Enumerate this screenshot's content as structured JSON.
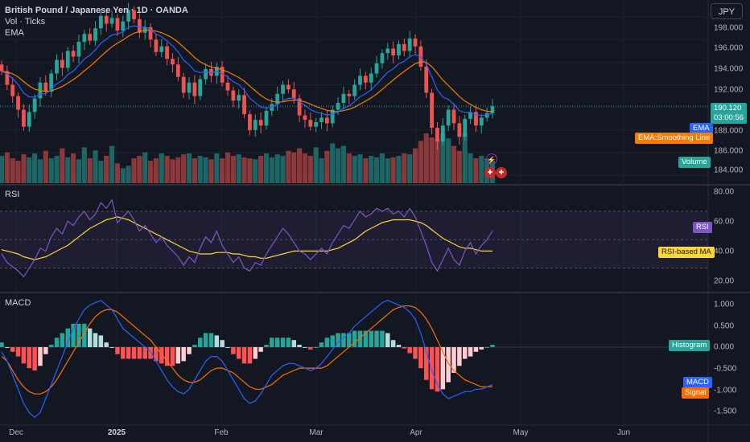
{
  "header": {
    "title": "British Pound / Japanese Yen · 1D · OANDA",
    "vol_label": "Vol · Ticks",
    "ema_label": "EMA",
    "currency_button": "JPY"
  },
  "price_panel": {
    "last_price": "190.120",
    "countdown": "03:00:56",
    "y_ticks": [
      "198.000",
      "196.000",
      "194.000",
      "192.000",
      "190.000",
      "188.000",
      "186.000",
      "184.000"
    ],
    "tags": {
      "ema": "EMA",
      "smoothing": "EMA:Smoothing Line",
      "volume": "Volume"
    }
  },
  "rsi_panel": {
    "label": "RSI",
    "y_ticks": [
      "80.00",
      "60.00",
      "40.00",
      "20.00"
    ],
    "tags": {
      "rsi": "RSI",
      "rsi_ma": "RSI-based MA"
    }
  },
  "macd_panel": {
    "label": "MACD",
    "y_ticks": [
      "1.000",
      "0.500",
      "0.000",
      "-0.500",
      "-1.000",
      "-1.500"
    ],
    "tags": {
      "histogram": "Histogram",
      "macd": "MACD",
      "signal": "Signal"
    }
  },
  "x_axis": {
    "labels": [
      "Dec",
      "2025",
      "Feb",
      "Mar",
      "Apr",
      "May",
      "Jun"
    ]
  },
  "colors": {
    "background": "#131722",
    "up": "#26a69a",
    "down": "#ef5350",
    "ema": "#2962ff",
    "smoothing": "#f57c00",
    "rsi": "#7e57c2",
    "rsi_ma": "#fdd835",
    "macd": "#2962ff",
    "signal": "#ff6d00",
    "hist_up_strong": "#26a69a",
    "hist_up_weak": "#b2dfdb",
    "hist_down_strong": "#ff5252",
    "hist_down_weak": "#ffcdd2"
  },
  "chart_data": [
    {
      "type": "candlestick",
      "title": "British Pound / Japanese Yen · 1D · OANDA",
      "ylim": [
        183.3,
        199.5
      ],
      "close_path": [
        193.2,
        192.0,
        191.0,
        189.8,
        188.3,
        189.6,
        190.8,
        192.2,
        191.4,
        193.0,
        194.2,
        193.5,
        195.0,
        194.5,
        195.8,
        196.5,
        195.9,
        197.0,
        198.1,
        197.4,
        197.9,
        196.8,
        197.6,
        198.6,
        197.8,
        196.6,
        197.1,
        196.0,
        194.9,
        195.4,
        194.3,
        193.8,
        192.7,
        191.3,
        192.2,
        191.0,
        192.5,
        193.4,
        192.8,
        193.6,
        192.2,
        191.5,
        190.6,
        191.1,
        189.4,
        188.0,
        188.9,
        188.4,
        189.7,
        190.3,
        191.2,
        192.0,
        191.6,
        190.8,
        189.3,
        188.9,
        188.3,
        188.7,
        189.1,
        188.6,
        189.8,
        190.4,
        191.2,
        191.0,
        192.0,
        192.8,
        192.2,
        193.0,
        193.9,
        194.8,
        195.2,
        194.6,
        195.6,
        195.0,
        196.1,
        195.4,
        193.6,
        191.3,
        188.2,
        187.0,
        188.4,
        189.8,
        188.6,
        187.4,
        189.0,
        189.6,
        188.4,
        189.1,
        189.5,
        190.1
      ],
      "volume_path": [
        0.55,
        0.62,
        0.5,
        0.45,
        0.58,
        0.52,
        0.6,
        0.48,
        0.65,
        0.5,
        0.55,
        0.7,
        0.52,
        0.6,
        0.48,
        0.72,
        0.5,
        0.66,
        0.45,
        0.55,
        0.75,
        0.4,
        0.3,
        0.35,
        0.5,
        0.55,
        0.62,
        0.45,
        0.5,
        0.6,
        0.55,
        0.48,
        0.52,
        0.58,
        0.6,
        0.5,
        0.55,
        0.52,
        0.48,
        0.6,
        0.5,
        0.62,
        0.55,
        0.58,
        0.52,
        0.5,
        0.48,
        0.55,
        0.6,
        0.52,
        0.58,
        0.55,
        0.65,
        0.62,
        0.7,
        0.6,
        0.55,
        0.72,
        0.5,
        0.65,
        0.8,
        0.7,
        0.75,
        0.6,
        0.55,
        0.58,
        0.5,
        0.55,
        0.52,
        0.6,
        0.5,
        0.52,
        0.55,
        0.6,
        0.58,
        0.7,
        0.85,
        1.0,
        0.92,
        0.88,
        1.0,
        0.9,
        0.75,
        0.65,
        1.0,
        0.6,
        0.5,
        0.55,
        0.5,
        0.45
      ],
      "last": 190.12
    },
    {
      "type": "line",
      "title": "RSI",
      "ylim": [
        14,
        88
      ],
      "series": [
        {
          "name": "RSI",
          "values": [
            40,
            34,
            31,
            28,
            24,
            30,
            36,
            44,
            42,
            52,
            58,
            54,
            63,
            60,
            66,
            70,
            64,
            68,
            76,
            72,
            78,
            62,
            66,
            70,
            64,
            56,
            60,
            54,
            48,
            52,
            46,
            42,
            38,
            32,
            38,
            34,
            44,
            52,
            48,
            56,
            46,
            40,
            34,
            38,
            30,
            28,
            34,
            32,
            40,
            46,
            52,
            58,
            54,
            48,
            42,
            40,
            36,
            40,
            44,
            40,
            48,
            54,
            60,
            58,
            64,
            70,
            66,
            68,
            72,
            70,
            72,
            68,
            70,
            66,
            72,
            66,
            56,
            46,
            34,
            28,
            36,
            44,
            36,
            32,
            42,
            48,
            40,
            46,
            50,
            56
          ]
        },
        {
          "name": "RSI-based MA",
          "values": [
            43,
            42,
            41,
            40,
            38,
            37,
            36,
            37,
            38,
            40,
            42,
            44,
            46,
            49,
            52,
            55,
            58,
            60,
            62,
            64,
            65,
            66,
            65,
            64,
            62,
            60,
            58,
            56,
            54,
            52,
            50,
            48,
            46,
            44,
            42,
            41,
            40,
            40,
            40,
            41,
            41,
            41,
            40,
            40,
            39,
            38,
            38,
            37,
            37,
            38,
            39,
            40,
            41,
            42,
            42,
            42,
            42,
            42,
            42,
            42,
            43,
            44,
            46,
            48,
            50,
            53,
            56,
            58,
            60,
            62,
            63,
            64,
            64,
            64,
            64,
            63,
            62,
            60,
            57,
            54,
            51,
            49,
            47,
            45,
            44,
            44,
            43,
            42,
            42,
            42
          ]
        }
      ]
    },
    {
      "type": "line",
      "title": "MACD",
      "ylim": [
        -1.65,
        1.15
      ],
      "series": [
        {
          "name": "MACD",
          "values": [
            -0.1,
            -0.3,
            -0.6,
            -0.9,
            -1.2,
            -1.4,
            -1.5,
            -1.4,
            -1.1,
            -0.8,
            -0.5,
            -0.2,
            0.1,
            0.4,
            0.6,
            0.8,
            0.9,
            0.95,
            1.0,
            0.9,
            0.8,
            0.6,
            0.4,
            0.3,
            0.2,
            0.1,
            0.0,
            -0.1,
            -0.3,
            -0.5,
            -0.7,
            -0.85,
            -0.95,
            -1.0,
            -0.9,
            -0.7,
            -0.5,
            -0.3,
            -0.2,
            -0.2,
            -0.3,
            -0.5,
            -0.7,
            -0.9,
            -1.1,
            -1.2,
            -1.15,
            -1.0,
            -0.8,
            -0.6,
            -0.5,
            -0.4,
            -0.35,
            -0.35,
            -0.4,
            -0.45,
            -0.5,
            -0.45,
            -0.35,
            -0.2,
            -0.05,
            0.1,
            0.2,
            0.3,
            0.45,
            0.55,
            0.65,
            0.75,
            0.85,
            0.95,
            1.0,
            0.95,
            0.9,
            0.85,
            0.75,
            0.6,
            0.3,
            -0.1,
            -0.5,
            -0.8,
            -1.0,
            -1.1,
            -1.05,
            -1.0,
            -0.95,
            -0.95,
            -0.9,
            -0.9,
            -0.85,
            -0.8
          ]
        },
        {
          "name": "Signal",
          "values": [
            -0.2,
            -0.3,
            -0.5,
            -0.7,
            -0.85,
            -0.95,
            -1.0,
            -1.0,
            -0.95,
            -0.85,
            -0.7,
            -0.5,
            -0.3,
            -0.1,
            0.1,
            0.3,
            0.5,
            0.65,
            0.75,
            0.8,
            0.8,
            0.75,
            0.65,
            0.55,
            0.45,
            0.35,
            0.25,
            0.15,
            0.0,
            -0.15,
            -0.3,
            -0.45,
            -0.6,
            -0.7,
            -0.75,
            -0.75,
            -0.7,
            -0.6,
            -0.5,
            -0.45,
            -0.45,
            -0.5,
            -0.55,
            -0.65,
            -0.75,
            -0.85,
            -0.9,
            -0.9,
            -0.85,
            -0.8,
            -0.7,
            -0.6,
            -0.55,
            -0.5,
            -0.45,
            -0.45,
            -0.45,
            -0.45,
            -0.45,
            -0.4,
            -0.3,
            -0.2,
            -0.1,
            0.0,
            0.1,
            0.2,
            0.3,
            0.4,
            0.5,
            0.6,
            0.7,
            0.8,
            0.85,
            0.88,
            0.88,
            0.85,
            0.75,
            0.6,
            0.4,
            0.15,
            -0.1,
            -0.35,
            -0.5,
            -0.6,
            -0.7,
            -0.75,
            -0.8,
            -0.85,
            -0.85,
            -0.85
          ]
        }
      ],
      "histogram": {
        "name": "Histogram",
        "values": [
          0.1,
          0.0,
          -0.1,
          -0.2,
          -0.35,
          -0.45,
          -0.5,
          -0.4,
          -0.15,
          0.05,
          0.2,
          0.3,
          0.4,
          0.5,
          0.5,
          0.5,
          0.4,
          0.3,
          0.25,
          0.1,
          0.0,
          -0.15,
          -0.25,
          -0.25,
          -0.25,
          -0.25,
          -0.25,
          -0.25,
          -0.3,
          -0.35,
          -0.4,
          -0.4,
          -0.35,
          -0.3,
          -0.15,
          0.05,
          0.2,
          0.3,
          0.3,
          0.25,
          0.15,
          0.0,
          -0.15,
          -0.25,
          -0.35,
          -0.35,
          -0.25,
          -0.1,
          0.05,
          0.2,
          0.2,
          0.2,
          0.2,
          0.15,
          0.05,
          0.0,
          -0.05,
          0.0,
          0.1,
          0.2,
          0.25,
          0.3,
          0.3,
          0.3,
          0.35,
          0.35,
          0.35,
          0.35,
          0.35,
          0.35,
          0.3,
          0.15,
          0.05,
          -0.03,
          -0.13,
          -0.25,
          -0.45,
          -0.7,
          -0.9,
          -0.95,
          -0.9,
          -0.75,
          -0.55,
          -0.4,
          -0.25,
          -0.2,
          -0.1,
          -0.05,
          0.0,
          0.05
        ]
      }
    }
  ]
}
